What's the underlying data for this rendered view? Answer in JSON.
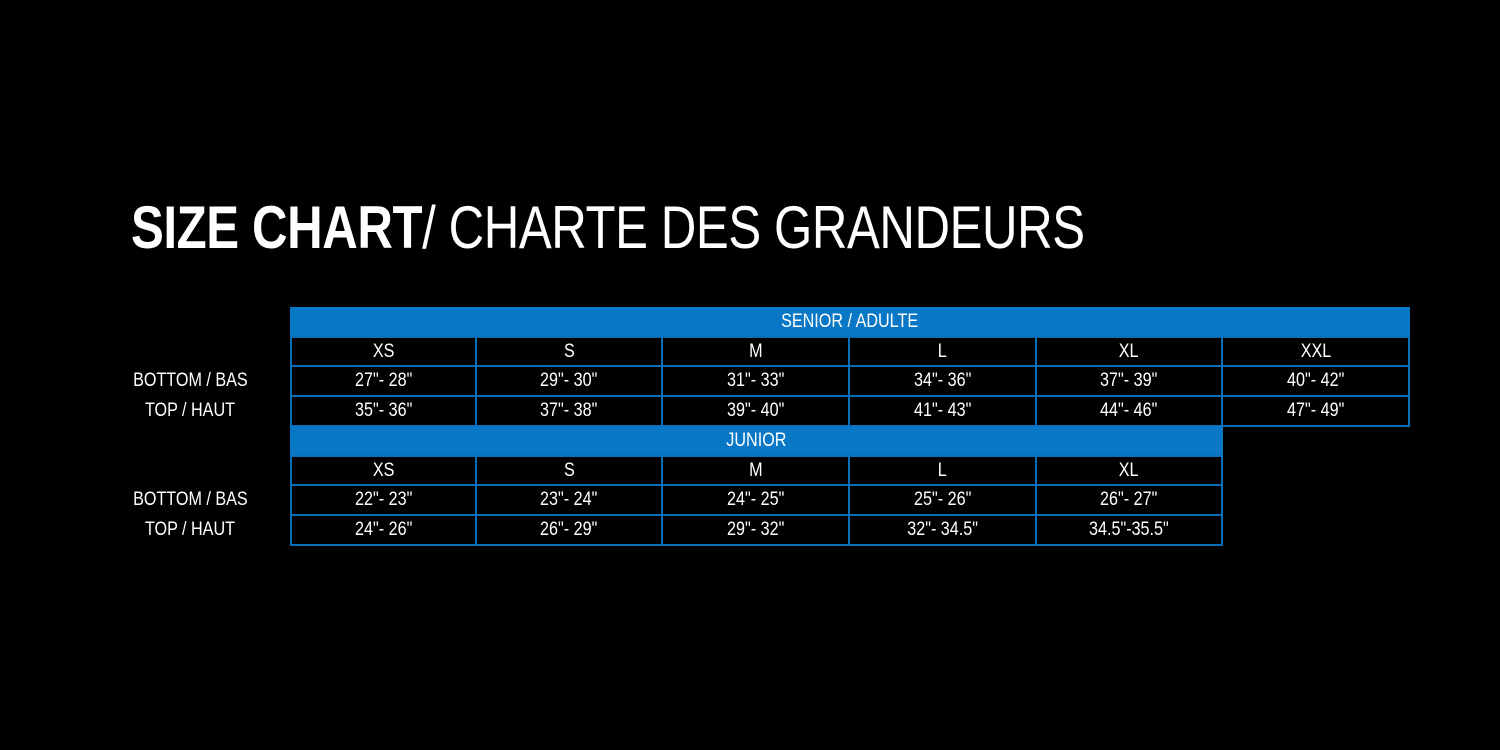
{
  "title": {
    "bold": "SIZE CHART",
    "regular": "/ CHARTE DES GRANDEURS"
  },
  "colors": {
    "accent": "#0878c6",
    "background": "#000000",
    "border": "#0a6fb8"
  },
  "sections": [
    {
      "header": "SENIOR / ADULTE",
      "sizes": [
        "XS",
        "S",
        "M",
        "L",
        "XL",
        "XXL"
      ],
      "rows": [
        {
          "label": "BOTTOM / BAS",
          "values": [
            "27\"- 28\"",
            "29\"- 30\"",
            "31\"- 33\"",
            "34\"- 36\"",
            "37\"- 39\"",
            "40\"- 42\""
          ]
        },
        {
          "label": "TOP / HAUT",
          "values": [
            "35\"- 36\"",
            "37\"- 38\"",
            "39\"- 40\"",
            "41\"- 43\"",
            "44\"- 46\"",
            "47\"- 49\""
          ]
        }
      ]
    },
    {
      "header": "JUNIOR",
      "sizes": [
        "XS",
        "S",
        "M",
        "L",
        "XL"
      ],
      "rows": [
        {
          "label": "BOTTOM / BAS",
          "values": [
            "22\"- 23\"",
            "23\"- 24\"",
            "24\"- 25\"",
            "25\"- 26\"",
            "26\"- 27\""
          ]
        },
        {
          "label": "TOP / HAUT",
          "values": [
            "24\"- 26\"",
            "26\"- 29\"",
            "29\"- 32\"",
            "32\"- 34.5\"",
            "34.5\"-35.5\""
          ]
        }
      ]
    }
  ]
}
